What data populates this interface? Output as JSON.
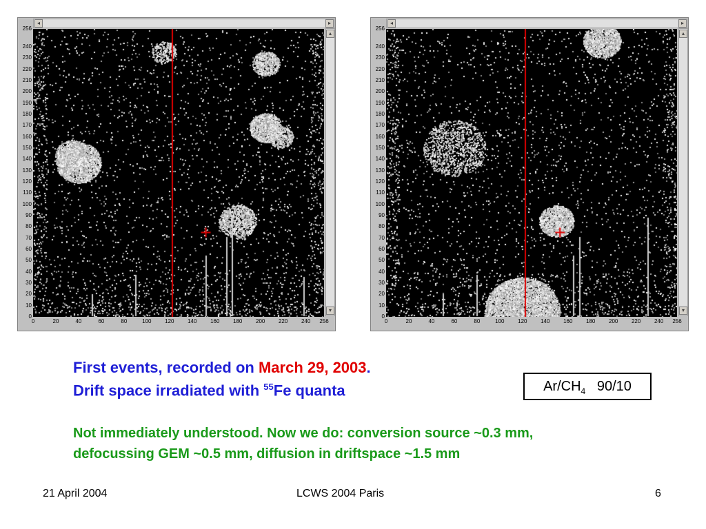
{
  "panels": [
    {
      "id": "left",
      "y_ticks": [
        "256",
        "240",
        "230",
        "220",
        "210",
        "200",
        "190",
        "180",
        "170",
        "160",
        "150",
        "140",
        "130",
        "120",
        "110",
        "100",
        "90",
        "80",
        "70",
        "60",
        "50",
        "40",
        "30",
        "20",
        "10",
        "0"
      ],
      "x_ticks": [
        "0",
        "20",
        "40",
        "60",
        "80",
        "100",
        "120",
        "140",
        "160",
        "180",
        "200",
        "220",
        "240",
        "256"
      ],
      "red_line_x": 122,
      "cursor": {
        "x": 152,
        "y": 75
      },
      "blobs": [
        {
          "x": 40,
          "y": 137,
          "r": 18,
          "intensity": 0.8
        },
        {
          "x": 35,
          "y": 143,
          "r": 14,
          "intensity": 0.6
        },
        {
          "x": 205,
          "y": 225,
          "r": 11,
          "intensity": 0.7
        },
        {
          "x": 205,
          "y": 168,
          "r": 13,
          "intensity": 0.9
        },
        {
          "x": 218,
          "y": 160,
          "r": 10,
          "intensity": 0.5
        },
        {
          "x": 180,
          "y": 85,
          "r": 15,
          "intensity": 0.5
        },
        {
          "x": 115,
          "y": 235,
          "r": 10,
          "intensity": 0.3
        }
      ],
      "spikes": [
        52,
        90,
        152,
        170,
        175,
        238
      ]
    },
    {
      "id": "right",
      "y_ticks": [
        "256",
        "240",
        "230",
        "220",
        "210",
        "200",
        "190",
        "180",
        "170",
        "160",
        "150",
        "140",
        "130",
        "120",
        "110",
        "100",
        "90",
        "80",
        "70",
        "60",
        "50",
        "40",
        "30",
        "20",
        "10",
        "0"
      ],
      "x_ticks": [
        "0",
        "20",
        "40",
        "60",
        "80",
        "100",
        "120",
        "140",
        "160",
        "180",
        "200",
        "220",
        "240",
        "256"
      ],
      "red_line_x": 122,
      "cursor": {
        "x": 153,
        "y": 75
      },
      "blobs": [
        {
          "x": 150,
          "y": 85,
          "r": 14,
          "intensity": 0.85
        },
        {
          "x": 190,
          "y": 245,
          "r": 15,
          "intensity": 0.8
        },
        {
          "x": 120,
          "y": 5,
          "r": 30,
          "intensity": 0.9
        },
        {
          "x": 60,
          "y": 150,
          "r": 25,
          "intensity": 0.2
        }
      ],
      "spikes": [
        50,
        80,
        165,
        170,
        230
      ]
    }
  ],
  "caption": {
    "line1_prefix": "First events, recorded on ",
    "line1_date": "March 29, 2003",
    "line1_suffix": ".",
    "line2_prefix": "Drift space irradiated with ",
    "line2_sup": "55",
    "line2_suffix": "Fe quanta"
  },
  "gas_box": {
    "main": "Ar/CH",
    "sub": "4",
    "ratio": "90/10"
  },
  "note": {
    "line1": "Not immediately understood. Now we do: conversion source ~0.3 mm,",
    "line2": "defocussing GEM ~0.5 mm, diffusion in driftspace ~1.5 mm"
  },
  "footer": {
    "date": "21 April 2004",
    "event": "LCWS 2004 Paris",
    "page": "6"
  },
  "colors": {
    "caption": "#1f1fd6",
    "date": "#e00000",
    "note": "#1a9a1a",
    "red_line": "#e00000"
  }
}
